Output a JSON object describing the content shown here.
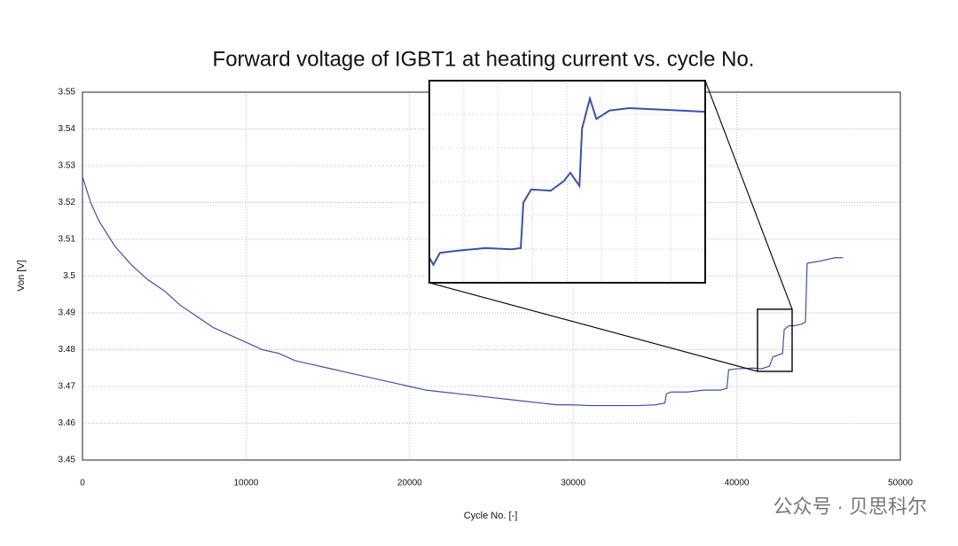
{
  "chart_data": [
    {
      "type": "line",
      "title": "Forward voltage of IGBT1 at heating current vs. cycle No.",
      "xlabel": "Cycle No. [-]",
      "ylabel": "Von [V]",
      "color": "#3c52a3",
      "grid": true,
      "xlim": [
        0,
        50000
      ],
      "ylim": [
        3.45,
        3.55
      ],
      "xticks": [
        0,
        10000,
        20000,
        30000,
        40000,
        50000
      ],
      "yticks": [
        3.45,
        3.46,
        3.47,
        3.48,
        3.49,
        3.5,
        3.51,
        3.52,
        3.53,
        3.54,
        3.55
      ],
      "x": [
        0,
        500,
        1000,
        2000,
        3000,
        4000,
        5000,
        6000,
        7000,
        8000,
        9000,
        10000,
        11000,
        12000,
        13000,
        14000,
        15000,
        16000,
        17000,
        18000,
        19000,
        20000,
        21000,
        22000,
        23000,
        24000,
        25000,
        26000,
        27000,
        28000,
        29000,
        30000,
        31000,
        32000,
        33000,
        34000,
        35000,
        35600,
        35700,
        36000,
        37000,
        38000,
        39000,
        39400,
        39500,
        40000,
        41000,
        41500,
        42000,
        42200,
        42500,
        42800,
        42900,
        43200,
        43500,
        44000,
        44200,
        44300,
        45000,
        46000,
        46500
      ],
      "values": [
        3.527,
        3.52,
        3.515,
        3.508,
        3.503,
        3.499,
        3.496,
        3.492,
        3.489,
        3.486,
        3.484,
        3.482,
        3.48,
        3.479,
        3.477,
        3.476,
        3.475,
        3.474,
        3.473,
        3.472,
        3.471,
        3.47,
        3.469,
        3.4685,
        3.468,
        3.4675,
        3.467,
        3.4665,
        3.466,
        3.4655,
        3.465,
        3.465,
        3.4648,
        3.4648,
        3.4648,
        3.4648,
        3.465,
        3.4655,
        3.468,
        3.4685,
        3.4685,
        3.469,
        3.469,
        3.4695,
        3.4745,
        3.4748,
        3.475,
        3.4748,
        3.4755,
        3.478,
        3.4785,
        3.479,
        3.4855,
        3.4865,
        3.4865,
        3.487,
        3.4875,
        3.5035,
        3.504,
        3.505,
        3.505
      ]
    },
    {
      "type": "line",
      "color": "#3c52a3",
      "xlim": [
        41269,
        43384
      ],
      "ylim": [
        3.4741,
        3.491
      ],
      "x": [
        41269,
        41300,
        41350,
        41500,
        41700,
        41900,
        41970,
        41990,
        42050,
        42200,
        42300,
        42350,
        42420,
        42440,
        42500,
        42550,
        42650,
        42800,
        43000,
        43200,
        43384
      ],
      "values": [
        3.4762,
        3.4756,
        3.4766,
        3.4768,
        3.477,
        3.4769,
        3.477,
        3.4808,
        3.4819,
        3.4818,
        3.4826,
        3.4833,
        3.4822,
        3.487,
        3.4895,
        3.4878,
        3.4885,
        3.4887,
        3.4886,
        3.4885,
        3.4884
      ]
    }
  ],
  "watermark": "公众号 · 贝思科尔"
}
